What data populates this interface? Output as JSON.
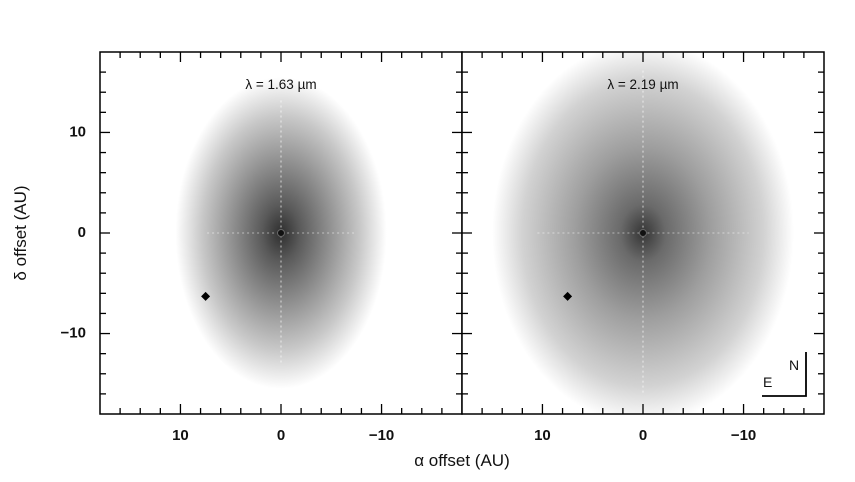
{
  "chart_data": {
    "type": "image",
    "xlabel": "α offset (AU)",
    "ylabel": "δ offset (AU)",
    "xlim": [
      18,
      -18
    ],
    "ylim": [
      -18,
      18
    ],
    "xticks": [
      10,
      0,
      -10
    ],
    "xtick_labels": [
      "10",
      "0",
      "−10"
    ],
    "yticks": [
      10,
      0,
      -10
    ],
    "ytick_labels": [
      "10",
      "0",
      "−10"
    ],
    "panels": [
      {
        "title": "λ = 1.63 µm",
        "ellipse": {
          "center": [
            0,
            0
          ],
          "semi_x": 10.5,
          "semi_y": 15.5
        },
        "marker": {
          "x": 7.5,
          "y": -6.3
        },
        "compass": null
      },
      {
        "title": "λ = 2.19 µm",
        "ellipse": {
          "center": [
            0,
            0
          ],
          "semi_x": 15.0,
          "semi_y": 19.0
        },
        "marker": {
          "x": 7.5,
          "y": -6.3
        },
        "compass": {
          "east": "E",
          "north": "N"
        }
      }
    ]
  }
}
